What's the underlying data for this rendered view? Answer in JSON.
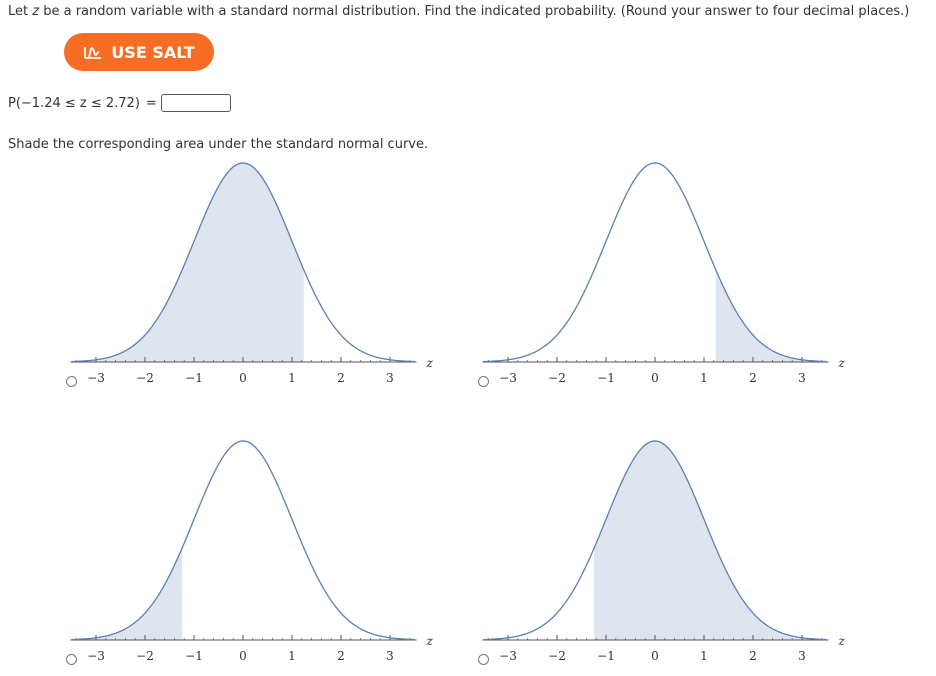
{
  "question": {
    "text_prefix": "Let ",
    "var": "z",
    "text_suffix": " be a random variable with a standard normal distribution. Find the indicated probability. (Round your answer to four decimal places.)"
  },
  "salt_button": {
    "label": "USE SALT",
    "color": "#f76d23",
    "icon": "salt-chart-icon"
  },
  "probability": {
    "expression": "P(−1.24 ≤ z ≤ 2.72)",
    "equals": "=",
    "answer_value": ""
  },
  "instruction": "Shade the corresponding area under the standard normal curve.",
  "chart_data": [
    {
      "type": "area",
      "shade_from": -3.5,
      "shade_to": 1.24,
      "x_label": "z",
      "tick_labels": [
        "−3",
        "−2",
        "−1",
        "0",
        "1",
        "2",
        "3"
      ],
      "ticks": [
        -3,
        -2,
        -1,
        0,
        1,
        2,
        3
      ],
      "selected": false
    },
    {
      "type": "area",
      "shade_from": 1.24,
      "shade_to": 3.5,
      "x_label": "z",
      "tick_labels": [
        "−3",
        "−2",
        "−1",
        "0",
        "1",
        "2",
        "3"
      ],
      "ticks": [
        -3,
        -2,
        -1,
        0,
        1,
        2,
        3
      ],
      "selected": false
    },
    {
      "type": "area",
      "shade_from": -3.5,
      "shade_to": -1.24,
      "x_label": "z",
      "tick_labels": [
        "−3",
        "−2",
        "−1",
        "0",
        "1",
        "2",
        "3"
      ],
      "ticks": [
        -3,
        -2,
        -1,
        0,
        1,
        2,
        3
      ],
      "selected": false
    },
    {
      "type": "area",
      "shade_from": -1.24,
      "shade_to": 3.5,
      "x_label": "z",
      "tick_labels": [
        "−3",
        "−2",
        "−1",
        "0",
        "1",
        "2",
        "3"
      ],
      "ticks": [
        -3,
        -2,
        -1,
        0,
        1,
        2,
        3
      ],
      "selected": false
    }
  ],
  "colors": {
    "curve": "#5b7fb5",
    "shade": "#dfe5ef",
    "axis": "#555555"
  }
}
